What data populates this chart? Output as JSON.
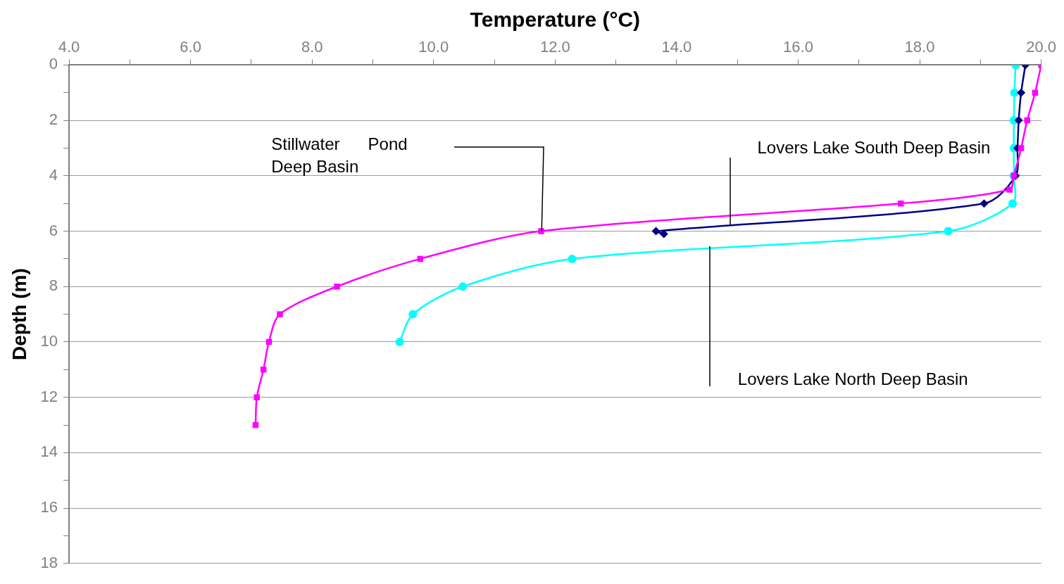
{
  "chart_data": {
    "type": "line",
    "xlabel": "Temperature (°C)",
    "ylabel": "Depth (m)",
    "xlim": [
      4,
      20
    ],
    "xticks": [
      {
        "value": 4,
        "label": "4.0"
      },
      {
        "value": 5,
        "label": null
      },
      {
        "value": 6,
        "label": "6.0"
      },
      {
        "value": 7,
        "label": null
      },
      {
        "value": 8,
        "label": "8.0"
      },
      {
        "value": 9,
        "label": null
      },
      {
        "value": 10,
        "label": "10.0"
      },
      {
        "value": 11,
        "label": null
      },
      {
        "value": 12,
        "label": "12.0"
      },
      {
        "value": 13,
        "label": null
      },
      {
        "value": 14,
        "label": "14.0"
      },
      {
        "value": 15,
        "label": null
      },
      {
        "value": 16,
        "label": "16.0"
      },
      {
        "value": 17,
        "label": null
      },
      {
        "value": 18,
        "label": "18.0"
      },
      {
        "value": 19,
        "label": null
      },
      {
        "value": 20,
        "label": "20.0"
      }
    ],
    "ylim": [
      18,
      0
    ],
    "yticks": [
      0,
      {
        "value": 1,
        "label": null
      },
      2,
      {
        "value": 3,
        "label": null
      },
      4,
      {
        "value": 5,
        "label": null
      },
      6,
      {
        "value": 7,
        "label": null
      },
      8,
      {
        "value": 9,
        "label": null
      },
      10,
      {
        "value": 11,
        "label": null
      },
      12,
      {
        "value": 13,
        "label": null
      },
      14,
      {
        "value": 15,
        "label": null
      },
      16,
      {
        "value": 17,
        "label": null
      },
      18
    ],
    "grid": "y",
    "legend": false,
    "series": [
      {
        "color": "#ff00ff",
        "marker": "square",
        "x": [
          20.0,
          19.9,
          19.77,
          19.67,
          19.55,
          19.48,
          17.69,
          11.77,
          9.78,
          8.41,
          7.47,
          7.29,
          7.2,
          7.09,
          7.07
        ],
        "values": [
          0,
          1,
          2,
          3,
          4,
          4.5,
          5,
          6,
          7,
          8,
          9,
          10,
          11,
          12,
          13
        ]
      },
      {
        "color": "#000080",
        "marker": "diamond",
        "x": [
          19.74,
          19.67,
          19.63,
          19.61,
          19.58,
          19.06,
          13.66,
          13.79
        ],
        "values": [
          0,
          1,
          2,
          3,
          4,
          5,
          6,
          6.1
        ]
      },
      {
        "color": "#00ffff",
        "marker": "circle",
        "x": [
          19.58,
          19.56,
          19.55,
          19.55,
          19.55,
          19.53,
          18.47,
          12.28,
          10.48,
          9.66,
          9.44
        ],
        "values": [
          0,
          1,
          2,
          3,
          4,
          5,
          6,
          7,
          8,
          9,
          10
        ]
      }
    ],
    "annotations": [
      "Stillwater      Pond\nDeep Basin",
      "Lovers Lake South Deep Basin",
      "Lovers Lake North Deep Basin"
    ]
  }
}
